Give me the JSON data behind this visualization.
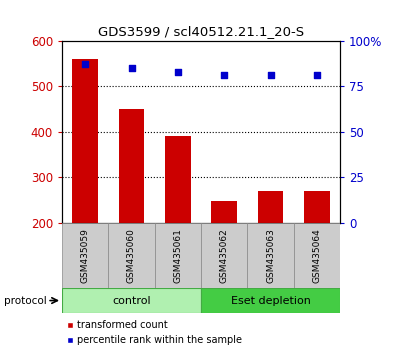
{
  "title": "GDS3599 / scl40512.21.1_20-S",
  "samples": [
    "GSM435059",
    "GSM435060",
    "GSM435061",
    "GSM435062",
    "GSM435063",
    "GSM435064"
  ],
  "transformed_counts": [
    560,
    450,
    390,
    248,
    270,
    270
  ],
  "percentile_ranks": [
    87,
    85,
    83,
    81,
    81,
    81
  ],
  "ylim_left": [
    200,
    600
  ],
  "ylim_right": [
    0,
    100
  ],
  "yticks_left": [
    200,
    300,
    400,
    500,
    600
  ],
  "yticks_right": [
    0,
    25,
    50,
    75,
    100
  ],
  "ytick_labels_right": [
    "0",
    "25",
    "50",
    "75",
    "100%"
  ],
  "bar_color": "#cc0000",
  "scatter_color": "#0000cc",
  "bar_bottom": 200,
  "groups": [
    {
      "label": "control",
      "samples": [
        0,
        1,
        2
      ],
      "color": "#b0f0b0",
      "edge_color": "#44aa44"
    },
    {
      "label": "Eset depletion",
      "samples": [
        3,
        4,
        5
      ],
      "color": "#44cc44",
      "edge_color": "#44aa44"
    }
  ],
  "protocol_label": "protocol",
  "legend_items": [
    {
      "color": "#cc0000",
      "label": "transformed count"
    },
    {
      "color": "#0000cc",
      "label": "percentile rank within the sample"
    }
  ],
  "grid_color": "#000000",
  "tick_label_color_left": "#cc0000",
  "tick_label_color_right": "#0000cc",
  "sample_box_color": "#cccccc",
  "sample_box_edge": "#888888"
}
